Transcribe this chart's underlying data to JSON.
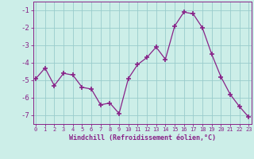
{
  "x": [
    0,
    1,
    2,
    3,
    4,
    5,
    6,
    7,
    8,
    9,
    10,
    11,
    12,
    13,
    14,
    15,
    16,
    17,
    18,
    19,
    20,
    21,
    22,
    23
  ],
  "y": [
    -4.9,
    -4.3,
    -5.3,
    -4.6,
    -4.7,
    -5.4,
    -5.5,
    -6.4,
    -6.3,
    -6.9,
    -4.9,
    -4.1,
    -3.7,
    -3.1,
    -3.8,
    -1.9,
    -1.1,
    -1.2,
    -2.0,
    -3.5,
    -4.8,
    -5.8,
    -6.5,
    -7.1
  ],
  "line_color": "#882288",
  "marker": "+",
  "marker_size": 4,
  "marker_lw": 1.2,
  "bg_color": "#cceee8",
  "grid_color": "#99cccc",
  "spine_color": "#882288",
  "tick_color": "#882288",
  "label_color": "#882288",
  "xlabel": "Windchill (Refroidissement éolien,°C)",
  "ylim": [
    -7.5,
    -0.5
  ],
  "yticks": [
    -7,
    -6,
    -5,
    -4,
    -3,
    -2,
    -1
  ],
  "ytick_labels": [
    "-7",
    "-6",
    "-5",
    "-4",
    "-3",
    "-2",
    "-1"
  ],
  "xticks": [
    0,
    1,
    2,
    3,
    4,
    5,
    6,
    7,
    8,
    9,
    10,
    11,
    12,
    13,
    14,
    15,
    16,
    17,
    18,
    19,
    20,
    21,
    22,
    23
  ],
  "xlim": [
    -0.3,
    23.3
  ]
}
